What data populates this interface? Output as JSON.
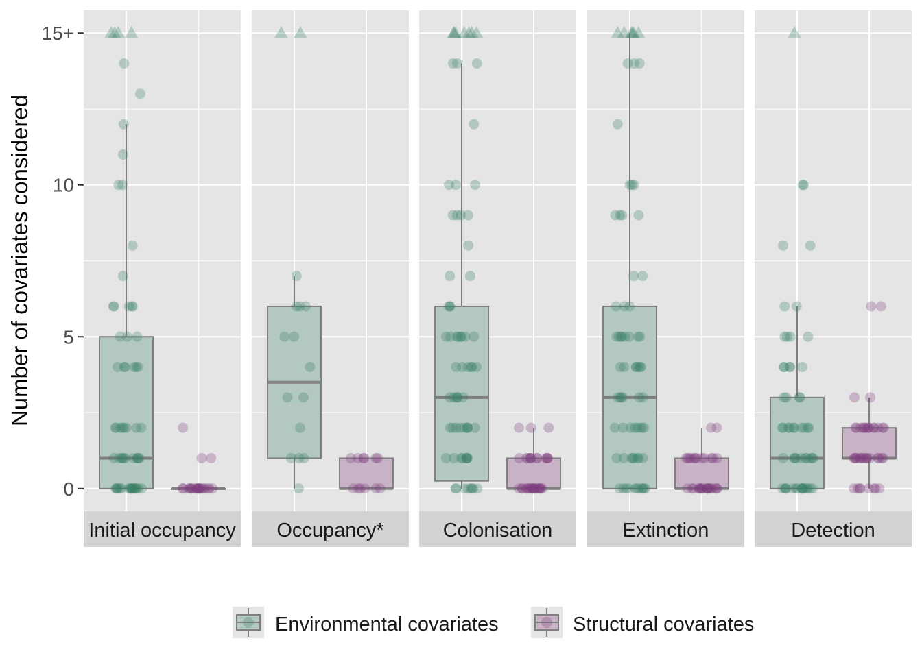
{
  "chart_data": {
    "type": "boxplot",
    "ylabel": "Number of covariates considered",
    "ylim": [
      -0.75,
      15.75
    ],
    "yticks": [
      {
        "value": 0,
        "label": "0"
      },
      {
        "value": 5,
        "label": "5"
      },
      {
        "value": 10,
        "label": "10"
      },
      {
        "value": 15,
        "label": "15+"
      }
    ],
    "grid": true,
    "legend_position": "bottom",
    "legend": [
      {
        "key": "env",
        "label": "Environmental covariates"
      },
      {
        "key": "struct",
        "label": "Structural covariates"
      }
    ],
    "colors": {
      "env_point": "#3d8066",
      "env_fill": "#b3c8c0",
      "struct_point": "#7d3f7f",
      "struct_fill": "#c8b3c6",
      "box_line": "#7f7f7f",
      "panel_bg": "#e5e5e5",
      "strip_bg": "#d3d3d3",
      "grid": "#ffffff"
    },
    "facets": [
      {
        "name": "Initial occupancy",
        "groups": [
          {
            "key": "env",
            "box": {
              "whisker_low": 0,
              "q1": 0,
              "median": 1,
              "q3": 5,
              "whisker_high": 12
            },
            "points": [
              0,
              0,
              0,
              0,
              0,
              0,
              0,
              0,
              0,
              0,
              0,
              0,
              0,
              0,
              0,
              0,
              0,
              0,
              1,
              1,
              1,
              1,
              1,
              1,
              1,
              1,
              1,
              1,
              1,
              2,
              2,
              2,
              2,
              2,
              2,
              2,
              2,
              4,
              4,
              4,
              4,
              4,
              4,
              5,
              5,
              5,
              6,
              6,
              6,
              6,
              6,
              7,
              8,
              10,
              10,
              11,
              12,
              13,
              14
            ],
            "capped": [
              15,
              15,
              15,
              15
            ]
          },
          {
            "key": "struct",
            "box": {
              "whisker_low": 0,
              "q1": 0,
              "median": 0,
              "q3": 0,
              "whisker_high": 0
            },
            "points": [
              0,
              0,
              0,
              0,
              0,
              0,
              0,
              0,
              0,
              0,
              0,
              0,
              0,
              0,
              0,
              0,
              0,
              0,
              0,
              0,
              0,
              1,
              1,
              2
            ],
            "capped": []
          }
        ]
      },
      {
        "name": "Occupancy*",
        "groups": [
          {
            "key": "env",
            "box": {
              "whisker_low": 0,
              "q1": 1,
              "median": 3.5,
              "q3": 6,
              "whisker_high": 7
            },
            "points": [
              0,
              1,
              1,
              1,
              2,
              3,
              3,
              4,
              5,
              5,
              6,
              6,
              6,
              7
            ],
            "capped": [
              15,
              15
            ]
          },
          {
            "key": "struct",
            "box": {
              "whisker_low": 0,
              "q1": 0,
              "median": 0,
              "q3": 1,
              "whisker_high": 1
            },
            "points": [
              0,
              0,
              0,
              0,
              0,
              0,
              1,
              1,
              1,
              1,
              1,
              1
            ],
            "capped": []
          }
        ]
      },
      {
        "name": "Colonisation",
        "groups": [
          {
            "key": "env",
            "box": {
              "whisker_low": 0,
              "q1": 0.25,
              "median": 3,
              "q3": 6,
              "whisker_high": 14
            },
            "points": [
              0,
              0,
              0,
              0,
              0,
              0,
              0,
              0,
              1,
              1,
              1,
              1,
              1,
              1,
              1,
              1,
              2,
              2,
              2,
              2,
              2,
              2,
              2,
              2,
              2,
              3,
              3,
              3,
              3,
              3,
              3,
              4,
              4,
              4,
              4,
              4,
              4,
              5,
              5,
              5,
              5,
              5,
              5,
              5,
              5,
              6,
              6,
              6,
              7,
              7,
              8,
              9,
              9,
              9,
              9,
              10,
              10,
              10,
              12,
              14,
              14,
              14
            ],
            "capped": [
              15,
              15,
              15,
              15,
              15,
              15,
              15
            ]
          },
          {
            "key": "struct",
            "box": {
              "whisker_low": 0,
              "q1": 0,
              "median": 0,
              "q3": 1,
              "whisker_high": 2
            },
            "points": [
              0,
              0,
              0,
              0,
              0,
              0,
              0,
              0,
              0,
              0,
              0,
              0,
              0,
              0,
              0,
              0,
              0,
              0,
              0,
              0,
              1,
              1,
              1,
              1,
              1,
              1,
              1,
              1,
              1,
              1,
              1,
              1,
              2,
              2,
              2
            ],
            "capped": []
          }
        ]
      },
      {
        "name": "Extinction",
        "groups": [
          {
            "key": "env",
            "box": {
              "whisker_low": 0,
              "q1": 0,
              "median": 3,
              "q3": 6,
              "whisker_high": 15
            },
            "points": [
              0,
              0,
              0,
              0,
              0,
              0,
              0,
              0,
              0,
              0,
              0,
              1,
              1,
              1,
              1,
              1,
              1,
              1,
              1,
              2,
              2,
              2,
              2,
              2,
              2,
              2,
              2,
              3,
              3,
              3,
              3,
              3,
              3,
              4,
              4,
              4,
              4,
              4,
              4,
              4,
              5,
              5,
              5,
              5,
              5,
              5,
              5,
              5,
              6,
              6,
              6,
              7,
              7,
              9,
              9,
              9,
              9,
              10,
              10,
              10,
              12,
              14,
              14,
              14
            ],
            "capped": [
              15,
              15,
              15,
              15,
              15,
              15
            ]
          },
          {
            "key": "struct",
            "box": {
              "whisker_low": 0,
              "q1": 0,
              "median": 0,
              "q3": 1,
              "whisker_high": 2
            },
            "points": [
              0,
              0,
              0,
              0,
              0,
              0,
              0,
              0,
              0,
              0,
              0,
              0,
              0,
              0,
              0,
              0,
              0,
              0,
              0,
              1,
              1,
              1,
              1,
              1,
              1,
              1,
              1,
              1,
              1,
              1,
              1,
              2,
              2
            ],
            "capped": []
          }
        ]
      },
      {
        "name": "Detection",
        "groups": [
          {
            "key": "env",
            "box": {
              "whisker_low": 0,
              "q1": 0,
              "median": 1,
              "q3": 3,
              "whisker_high": 6
            },
            "points": [
              0,
              0,
              0,
              0,
              0,
              0,
              0,
              0,
              0,
              0,
              0,
              0,
              0,
              0,
              0,
              0,
              1,
              1,
              1,
              1,
              1,
              1,
              1,
              1,
              1,
              1,
              2,
              2,
              2,
              2,
              2,
              2,
              2,
              2,
              2,
              2,
              3,
              3,
              3,
              3,
              4,
              4,
              4,
              4,
              4,
              5,
              5,
              5,
              5,
              6,
              6,
              8,
              8,
              10,
              10
            ],
            "capped": [
              15
            ]
          },
          {
            "key": "struct",
            "box": {
              "whisker_low": 0,
              "q1": 1,
              "median": 1,
              "q3": 2,
              "whisker_high": 3
            },
            "points": [
              0,
              0,
              0,
              0,
              0,
              0,
              0,
              0,
              1,
              1,
              1,
              1,
              1,
              1,
              1,
              1,
              1,
              1,
              1,
              1,
              1,
              1,
              1,
              1,
              2,
              2,
              2,
              2,
              2,
              2,
              2,
              2,
              2,
              2,
              2,
              2,
              2,
              2,
              3,
              3,
              6,
              6
            ],
            "capped": []
          }
        ]
      }
    ]
  }
}
